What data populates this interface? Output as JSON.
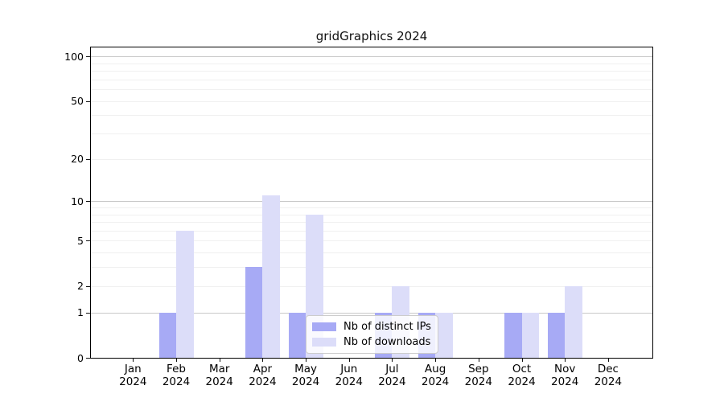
{
  "title": "gridGraphics 2024",
  "legend": {
    "items": [
      {
        "label": "Nb of distinct IPs",
        "color": "#a7aaf5"
      },
      {
        "label": "Nb of downloads",
        "color": "#dcddf9"
      }
    ]
  },
  "colors": {
    "bar_distinct_ips": "#a7aaf5",
    "bar_downloads": "#dcddf9",
    "grid_major": "#c8c8c8",
    "grid_minor": "#f0f0f0",
    "axis": "#000000"
  },
  "chart_data": {
    "type": "bar",
    "title": "gridGraphics 2024",
    "categories": [
      "Jan",
      "Feb",
      "Mar",
      "Apr",
      "May",
      "Jun",
      "Jul",
      "Aug",
      "Sep",
      "Oct",
      "Nov",
      "Dec"
    ],
    "year_label": "2024",
    "series": [
      {
        "name": "Nb of distinct IPs",
        "color": "#a7aaf5",
        "values": [
          0,
          1,
          0,
          3,
          1,
          0,
          1,
          1,
          0,
          1,
          1,
          0
        ]
      },
      {
        "name": "Nb of downloads",
        "color": "#dcddf9",
        "values": [
          0,
          6,
          0,
          11,
          8,
          0,
          2,
          1,
          0,
          1,
          2,
          0
        ]
      }
    ],
    "y_scale": "log10(value+1), zero pinned to axis bottom",
    "y_ticks": [
      0,
      1,
      2,
      5,
      10,
      20,
      50,
      100
    ],
    "major_gridlines": [
      1,
      10,
      100
    ],
    "minor_gridlines": [
      2,
      3,
      4,
      5,
      6,
      7,
      8,
      9,
      20,
      30,
      40,
      50,
      60,
      70,
      80,
      90
    ],
    "ylim": [
      0,
      115
    ],
    "grid": "horizontal only",
    "legend_position": "lower center, inside plot"
  }
}
